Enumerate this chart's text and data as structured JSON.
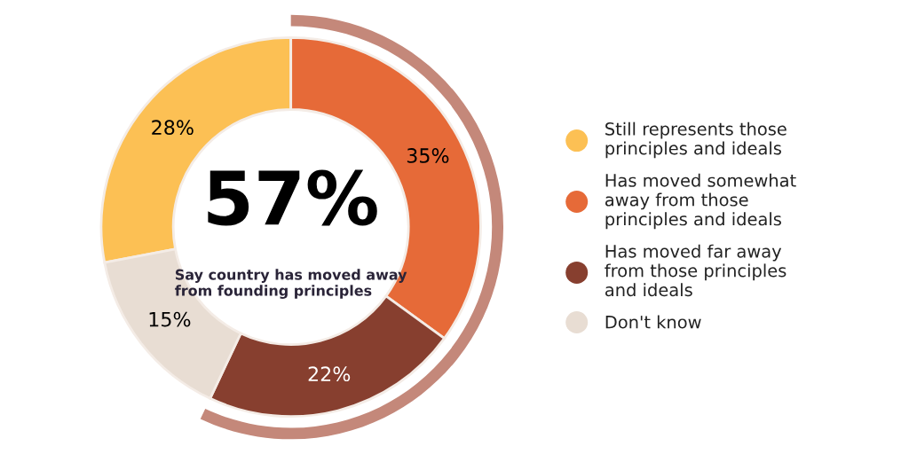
{
  "chart_data": {
    "type": "donut",
    "categories": [
      "Still represents those principles and ideals",
      "Has moved somewhat away from those principles and ideals",
      "Has moved far away from those principles and ideals",
      "Don't know"
    ],
    "values": [
      28,
      35,
      22,
      15
    ],
    "value_labels": [
      "28%",
      "35%",
      "22%",
      "15%"
    ],
    "colors": [
      "#fcc054",
      "#e66a38",
      "#873f2f",
      "#e8ddd3"
    ],
    "annotations": [
      "57%",
      "Say country has moved away from founding principles"
    ],
    "legend": "right"
  }
}
